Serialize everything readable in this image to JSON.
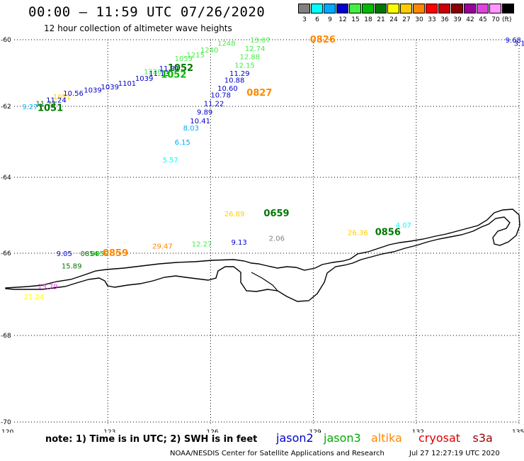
{
  "title": "00:00 – 11:59 UTC 07/26/2020",
  "subtitle": "12 hour collection of altimeter wave heights",
  "colorbar": {
    "unit": "(ft)",
    "bins": [
      {
        "label": "3",
        "color": "#808080"
      },
      {
        "label": "6",
        "color": "#00ffff"
      },
      {
        "label": "9",
        "color": "#00aaff"
      },
      {
        "label": "12",
        "color": "#0000cc"
      },
      {
        "label": "15",
        "color": "#44ee44"
      },
      {
        "label": "18",
        "color": "#00bb00"
      },
      {
        "label": "21",
        "color": "#007700"
      },
      {
        "label": "24",
        "color": "#ffff00"
      },
      {
        "label": "27",
        "color": "#ffcc00"
      },
      {
        "label": "30",
        "color": "#ff8800"
      },
      {
        "label": "33",
        "color": "#ff0000"
      },
      {
        "label": "36",
        "color": "#cc0000"
      },
      {
        "label": "39",
        "color": "#880000"
      },
      {
        "label": "42",
        "color": "#990099"
      },
      {
        "label": "45",
        "color": "#dd44dd"
      },
      {
        "label": "70",
        "color": "#ff99ff"
      },
      {
        "label": "",
        "color": "#000000"
      }
    ]
  },
  "axes": {
    "lat_labels": [
      {
        "label": "-60",
        "lat": -60
      },
      {
        "label": "-62",
        "lat": -62
      },
      {
        "label": "-64",
        "lat": -64
      },
      {
        "label": "-66",
        "lat": -66
      },
      {
        "label": "-68",
        "lat": -68
      },
      {
        "label": "-70",
        "lat": -70
      }
    ],
    "lon_labels": [
      {
        "label": "120",
        "lon": 120
      },
      {
        "label": "123",
        "lon": 123
      },
      {
        "label": "126",
        "lon": 126
      },
      {
        "label": "129",
        "lon": 129
      },
      {
        "label": "132",
        "lon": 132
      },
      {
        "label": "135",
        "lon": 135
      }
    ],
    "lon_range": [
      120,
      135
    ],
    "lat_range": [
      -70,
      -60
    ],
    "grid": true
  },
  "measurements": [
    {
      "text": "13.07",
      "lon": 127.15,
      "lat": -60.0,
      "color": "#44ee44"
    },
    {
      "text": "12.74",
      "lon": 127.0,
      "lat": -60.25,
      "color": "#44ee44"
    },
    {
      "text": "12.88",
      "lon": 126.85,
      "lat": -60.5,
      "color": "#44ee44"
    },
    {
      "text": "12.15",
      "lon": 126.7,
      "lat": -60.75,
      "color": "#44ee44"
    },
    {
      "text": "11.29",
      "lon": 126.55,
      "lat": -61.0,
      "color": "#0000cc"
    },
    {
      "text": "10.88",
      "lon": 126.4,
      "lat": -61.2,
      "color": "#0000cc"
    },
    {
      "text": "10.60",
      "lon": 126.2,
      "lat": -61.45,
      "color": "#0000cc"
    },
    {
      "text": "10.78",
      "lon": 126.0,
      "lat": -61.65,
      "color": "#0000cc"
    },
    {
      "text": "11.22",
      "lon": 125.8,
      "lat": -61.9,
      "color": "#0000cc"
    },
    {
      "text": "9.89",
      "lon": 125.6,
      "lat": -62.15,
      "color": "#0000cc"
    },
    {
      "text": "10.41",
      "lon": 125.4,
      "lat": -62.4,
      "color": "#0000cc"
    },
    {
      "text": "8.03",
      "lon": 125.2,
      "lat": -62.6,
      "color": "#00aaff"
    },
    {
      "text": "6.15",
      "lon": 124.95,
      "lat": -63.0,
      "color": "#00aaff"
    },
    {
      "text": "5.57",
      "lon": 124.6,
      "lat": -63.5,
      "color": "#00ffff"
    },
    {
      "text": "11.81",
      "lon": 124.5,
      "lat": -60.85,
      "color": "#0000cc"
    },
    {
      "text": "11.13",
      "lon": 124.2,
      "lat": -61.0,
      "color": "#0000cc"
    },
    {
      "text": "10.56",
      "lon": 121.7,
      "lat": -61.6,
      "color": "#0000cc"
    },
    {
      "text": "11.24",
      "lon": 121.2,
      "lat": -61.8,
      "color": "#0000cc"
    },
    {
      "text": "11.23",
      "lon": 120.9,
      "lat": -61.9,
      "color": "#007700"
    },
    {
      "text": "9.27",
      "lon": 120.5,
      "lat": -62.0,
      "color": "#00aaff"
    },
    {
      "text": "9.05",
      "lon": 121.5,
      "lat": -66.0,
      "color": "#0000cc"
    },
    {
      "text": "15.89",
      "lon": 121.65,
      "lat": -66.3,
      "color": "#007700"
    },
    {
      "text": "29.47",
      "lon": 124.3,
      "lat": -65.8,
      "color": "#ff8800"
    },
    {
      "text": "12.27",
      "lon": 125.45,
      "lat": -65.75,
      "color": "#44ee44"
    },
    {
      "text": "9.13",
      "lon": 126.6,
      "lat": -65.7,
      "color": "#0000cc"
    },
    {
      "text": "2.06",
      "lon": 127.7,
      "lat": -65.6,
      "color": "#808080"
    },
    {
      "text": "26.89",
      "lon": 126.4,
      "lat": -64.95,
      "color": "#ffcc00"
    },
    {
      "text": "26.36",
      "lon": 130.0,
      "lat": -65.45,
      "color": "#ffcc00"
    },
    {
      "text": "4.07",
      "lon": 131.4,
      "lat": -65.25,
      "color": "#00ffff"
    },
    {
      "text": "21.24",
      "lon": 120.55,
      "lat": -67.05,
      "color": "#ffff00"
    },
    {
      "text": "13.79",
      "lon": 120.95,
      "lat": -66.8,
      "color": "#dd44dd"
    },
    {
      "text": "9.68",
      "lon": 134.6,
      "lat": -60.0,
      "color": "#0000cc"
    }
  ],
  "clutter": [
    {
      "text": "1039",
      "lon": 123.8,
      "lat": -61.15,
      "color": "#0000cc"
    },
    {
      "text": "1101",
      "lon": 123.3,
      "lat": -61.3,
      "color": "#0000cc"
    },
    {
      "text": "1039",
      "lon": 122.8,
      "lat": -61.4,
      "color": "#0000cc"
    },
    {
      "text": "1039",
      "lon": 122.3,
      "lat": -61.5,
      "color": "#0000cc"
    },
    {
      "text": "1051",
      "lon": 121.4,
      "lat": -61.7,
      "color": "#ffcc00"
    },
    {
      "text": "1059",
      "lon": 124.95,
      "lat": -60.55,
      "color": "#44ee44"
    },
    {
      "text": "1215",
      "lon": 125.3,
      "lat": -60.45,
      "color": "#44ee44"
    },
    {
      "text": "1240",
      "lon": 125.7,
      "lat": -60.3,
      "color": "#44ee44"
    },
    {
      "text": "1248",
      "lon": 126.2,
      "lat": -60.1,
      "color": "#44ee44"
    },
    {
      "text": "1226",
      "lon": 124.05,
      "lat": -60.95,
      "color": "#44ee44"
    },
    {
      "text": "0854",
      "lon": 122.2,
      "lat": -66.0,
      "color": "#007700"
    },
    {
      "text": "0859",
      "lon": 122.5,
      "lat": -66.0,
      "color": "#00bb00"
    },
    {
      "text": "3.1",
      "lon": 134.85,
      "lat": -60.1,
      "color": "#0000cc"
    }
  ],
  "pass_times": [
    {
      "text": "0826",
      "lon": 128.9,
      "lat": -60.0,
      "color": "#ff8800"
    },
    {
      "text": "0827",
      "lon": 127.05,
      "lat": -61.6,
      "color": "#ff8800"
    },
    {
      "text": "1052",
      "lon": 124.75,
      "lat": -60.85,
      "color": "#007700"
    },
    {
      "text": "1052",
      "lon": 124.55,
      "lat": -61.05,
      "color": "#00bb00"
    },
    {
      "text": "1051",
      "lon": 120.95,
      "lat": -62.05,
      "color": "#007700"
    },
    {
      "text": "0659",
      "lon": 127.55,
      "lat": -64.95,
      "color": "#007700"
    },
    {
      "text": "0856",
      "lon": 130.8,
      "lat": -65.45,
      "color": "#007700"
    },
    {
      "text": "0859",
      "lon": 122.85,
      "lat": -66.0,
      "color": "#ff8800"
    }
  ],
  "note": "note:  1) Time is in UTC;  2) SWH is in feet",
  "satellites": [
    {
      "name": "jason2",
      "color": "#0000cc"
    },
    {
      "name": "jason3",
      "color": "#00aa00"
    },
    {
      "name": "altika",
      "color": "#ff8800"
    },
    {
      "name": "cryosat",
      "color": "#dd0000"
    },
    {
      "name": "s3a",
      "color": "#990000"
    }
  ],
  "credit": "NOAA/NESDIS Center for Satellite Applications and Research",
  "timestamp": "Jul 27 12:27:19 UTC 2020"
}
